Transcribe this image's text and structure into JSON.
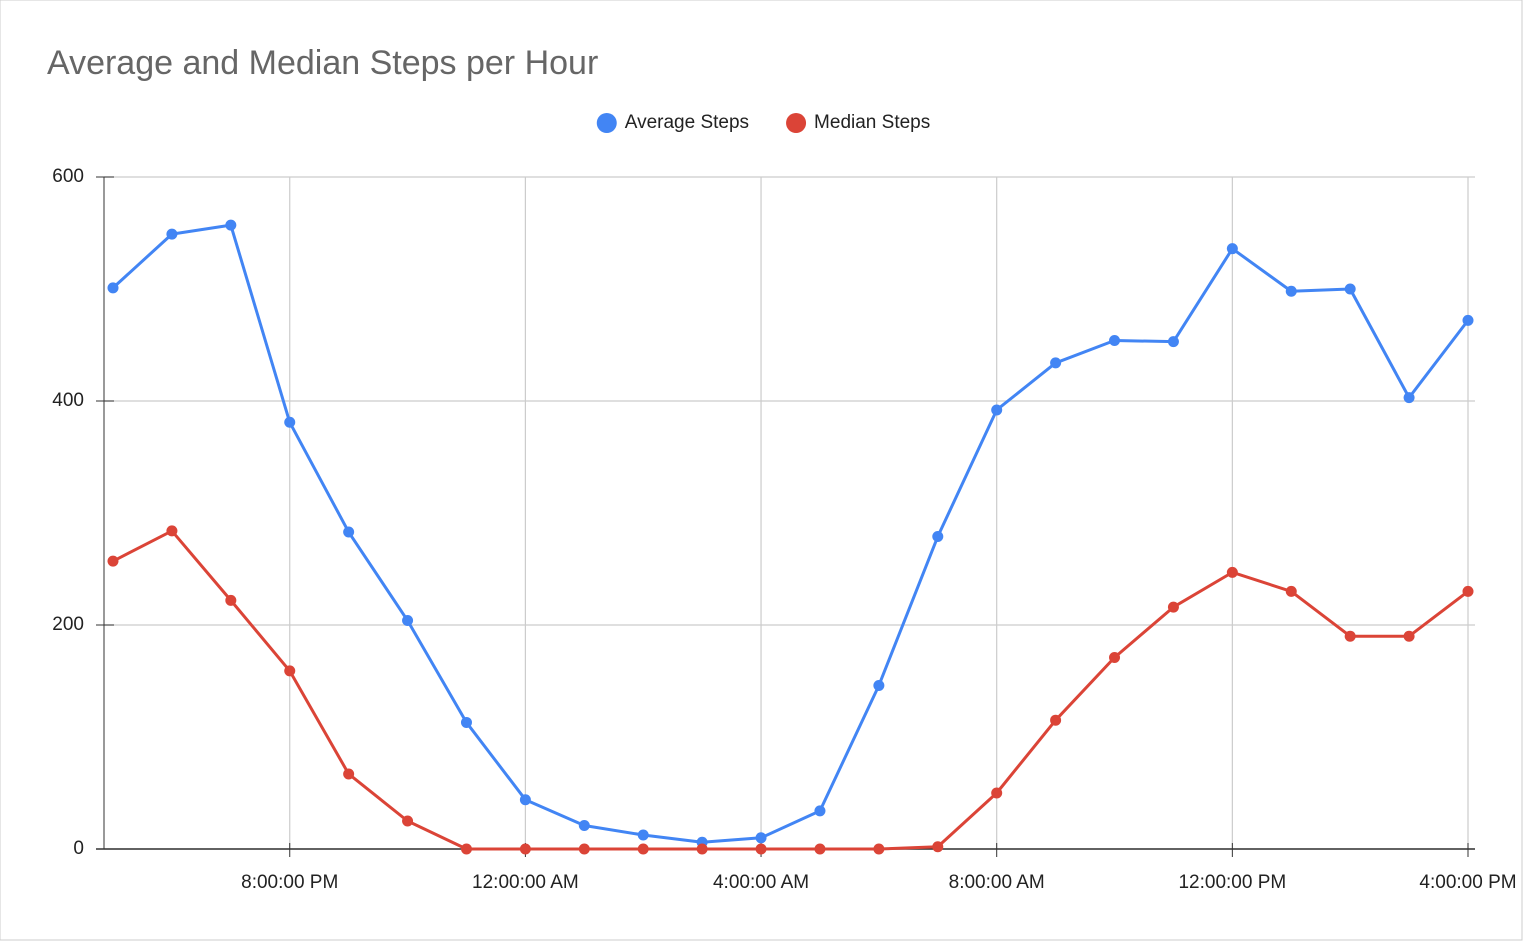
{
  "chart_data": {
    "type": "line",
    "title": "Average and Median Steps per Hour",
    "categories": [
      null,
      null,
      null,
      "8:00:00 PM",
      null,
      null,
      null,
      "12:00:00 AM",
      null,
      null,
      null,
      "4:00:00 AM",
      null,
      null,
      null,
      "8:00:00 AM",
      null,
      null,
      null,
      "12:00:00 PM",
      null,
      null,
      null,
      "4:00:00 PM"
    ],
    "series": [
      {
        "name": "Average Steps",
        "color": "#4285f4",
        "values": [
          501,
          549,
          557,
          381,
          283,
          204,
          113,
          44,
          21,
          12.5,
          6,
          10,
          34,
          146,
          279,
          392,
          434,
          454,
          453,
          536,
          498,
          500,
          403,
          472
        ]
      },
      {
        "name": "Median Steps",
        "color": "#db4437",
        "values": [
          257,
          284,
          222,
          159,
          67,
          25,
          0,
          0,
          0,
          0,
          0,
          0,
          0,
          0,
          2,
          50,
          115,
          171,
          216,
          247,
          230,
          190,
          190,
          230
        ]
      }
    ],
    "ylim": [
      0,
      600
    ],
    "yticks": [
      0,
      200,
      400,
      600
    ],
    "grid": true,
    "legend": "top"
  }
}
